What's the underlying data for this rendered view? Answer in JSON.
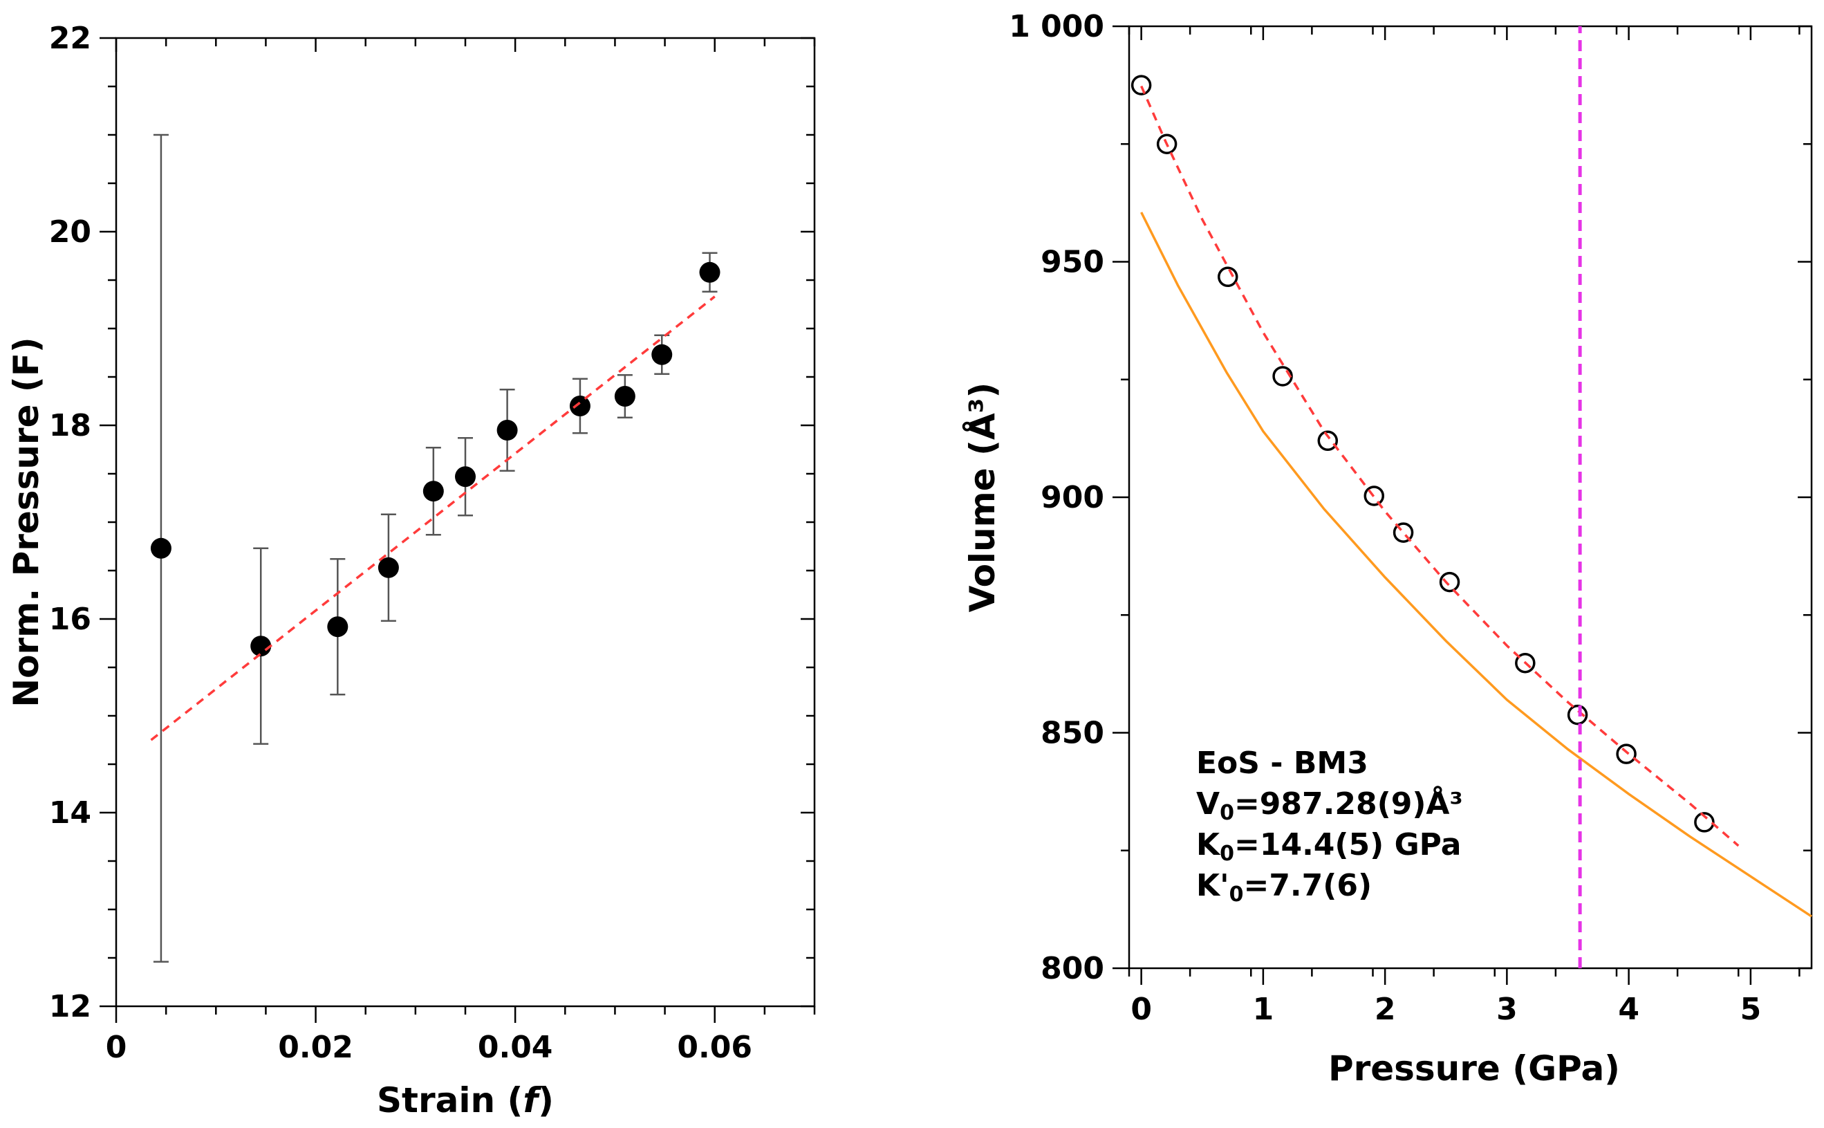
{
  "chart_data": [
    {
      "type": "scatter",
      "title": "",
      "xlabel": "Strain (f)",
      "xlabel_main": "Strain (",
      "xlabel_italic": "f",
      "xlabel_close": ")",
      "ylabel": "Norm. Pressure (F)",
      "xlim": [
        0,
        0.07
      ],
      "ylim": [
        12,
        22
      ],
      "xticks": [
        0,
        0.02,
        0.04,
        0.06
      ],
      "xtick_labels": [
        "0",
        "0.02",
        "0.04",
        "0.06"
      ],
      "yticks": [
        12,
        14,
        16,
        18,
        20,
        22
      ],
      "ytick_labels": [
        "12",
        "14",
        "16",
        "18",
        "20",
        "22"
      ],
      "series": [
        {
          "name": "data",
          "marker": "filled-circle",
          "x": [
            0.0045,
            0.0145,
            0.0222,
            0.0273,
            0.0318,
            0.035,
            0.0392,
            0.0465,
            0.051,
            0.0547,
            0.0595
          ],
          "y": [
            16.73,
            15.72,
            15.92,
            16.53,
            17.32,
            17.47,
            17.95,
            18.2,
            18.3,
            18.73,
            19.58
          ],
          "err": [
            4.27,
            1.01,
            0.7,
            0.55,
            0.45,
            0.4,
            0.42,
            0.28,
            0.22,
            0.2,
            0.2
          ]
        },
        {
          "name": "fit",
          "style": "dashed",
          "color": "#ff3b3b",
          "x": [
            0.0035,
            0.06
          ],
          "y": [
            14.75,
            19.33
          ]
        }
      ]
    },
    {
      "type": "scatter",
      "title": "",
      "xlabel": "Pressure (GPa)",
      "ylabel": "Volume (Å³)",
      "xlim": [
        -0.1,
        5.5
      ],
      "ylim": [
        800,
        1000
      ],
      "xticks": [
        0,
        1,
        2,
        3,
        4,
        5
      ],
      "xtick_labels": [
        "0",
        "1",
        "2",
        "3",
        "4",
        "5"
      ],
      "yticks": [
        800,
        850,
        900,
        950,
        1000
      ],
      "ytick_labels": [
        "800",
        "850",
        "900",
        "950",
        "1 000"
      ],
      "series": [
        {
          "name": "data",
          "marker": "open-circle",
          "x": [
            0.0,
            0.21,
            0.71,
            1.16,
            1.53,
            1.91,
            2.15,
            2.53,
            3.15,
            3.58,
            3.98,
            4.62
          ],
          "y": [
            987.5,
            975.0,
            946.8,
            925.7,
            912.0,
            900.3,
            892.5,
            882.0,
            864.8,
            853.8,
            845.5,
            831.0
          ]
        },
        {
          "name": "BM3 fit",
          "style": "dashed",
          "color": "#ff3b3b",
          "x": [
            0.0,
            0.2,
            0.5,
            1.0,
            1.5,
            2.0,
            2.5,
            3.0,
            3.5,
            4.0,
            4.5,
            4.9
          ],
          "y": [
            987.3,
            975.5,
            959.0,
            935.0,
            914.0,
            897.0,
            882.0,
            868.5,
            856.5,
            845.5,
            835.0,
            826.0
          ]
        },
        {
          "name": "curve",
          "style": "solid",
          "color": "#ff9a1f",
          "x": [
            0.0,
            0.3,
            0.7,
            1.0,
            1.5,
            2.0,
            2.5,
            3.0,
            3.5,
            4.0,
            4.5,
            5.0,
            5.5
          ],
          "y": [
            960.5,
            945.0,
            926.5,
            914.0,
            897.5,
            883.0,
            869.5,
            857.0,
            846.5,
            837.0,
            828.0,
            819.5,
            811.0
          ]
        },
        {
          "name": "vertical marker",
          "style": "dashed",
          "color": "#e633e6",
          "x": [
            3.6,
            3.6
          ],
          "y": [
            800,
            1000
          ]
        }
      ],
      "annotations": [
        {
          "id": "eos",
          "text": "EoS - BM3"
        },
        {
          "id": "v0",
          "main": "V",
          "sub": "0",
          "value": "=987.28(9)Å³"
        },
        {
          "id": "k0",
          "main": "K",
          "sub": "0",
          "value": "=14.4(5) GPa"
        },
        {
          "id": "kp0",
          "main": "K'",
          "sub": "0",
          "value": "=7.7(6)"
        }
      ]
    }
  ]
}
